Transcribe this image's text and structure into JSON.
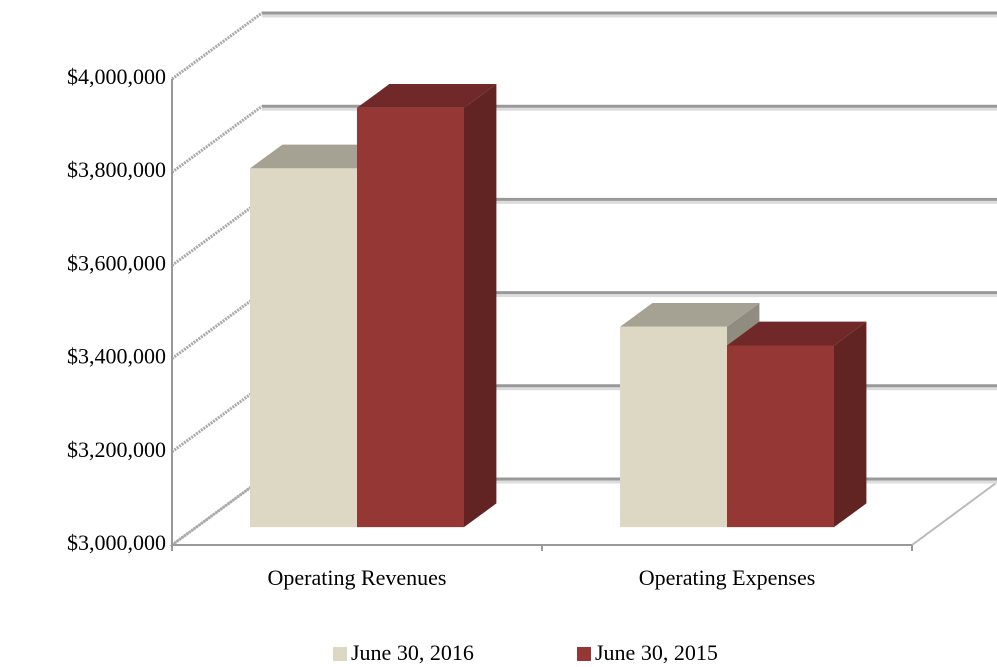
{
  "chart_data": {
    "type": "bar3d",
    "categories": [
      "Operating Revenues",
      "Operating Expenses"
    ],
    "series": [
      {
        "name": "June 30, 2016",
        "color": "#ddd8c4",
        "values": [
          3770000,
          3430000
        ]
      },
      {
        "name": "June 30, 2015",
        "color": "#953735",
        "values": [
          3900000,
          3390000
        ]
      }
    ],
    "ylim": [
      3000000,
      4000000
    ],
    "yticks": [
      {
        "value": 3000000,
        "label": "$3,000,000"
      },
      {
        "value": 3200000,
        "label": "$3,200,000"
      },
      {
        "value": 3400000,
        "label": "$3,400,000"
      },
      {
        "value": 3600000,
        "label": "$3,600,000"
      },
      {
        "value": 3800000,
        "label": "$3,800,000"
      },
      {
        "value": 4000000,
        "label": "$4,000,000"
      }
    ],
    "grid": true,
    "legend": "bottom"
  }
}
